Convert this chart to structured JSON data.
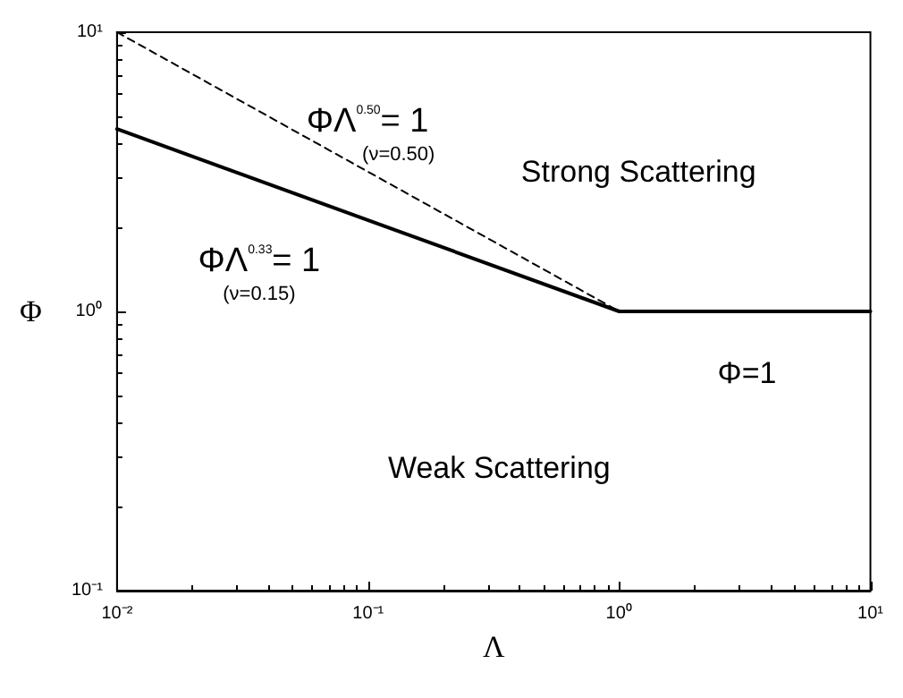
{
  "chart_data": {
    "type": "line",
    "xlabel": "Λ",
    "ylabel": "Φ",
    "log": "xy",
    "grid": false,
    "marker": "none",
    "xlim": [
      0.01,
      10
    ],
    "ylim": [
      0.1,
      10
    ],
    "xticks": [
      {
        "value": 0.01,
        "label": "10⁻²"
      },
      {
        "value": 0.1,
        "label": "10⁻¹"
      },
      {
        "value": 1,
        "label": "10⁰"
      },
      {
        "value": 10,
        "label": "10¹"
      }
    ],
    "yticks": [
      {
        "value": 0.1,
        "label": "10⁻¹"
      },
      {
        "value": 1,
        "label": "10⁰"
      },
      {
        "value": 10,
        "label": "10¹"
      }
    ],
    "series": [
      {
        "color": "#000000",
        "line_style": "solid",
        "x": [
          0.01,
          1,
          10
        ],
        "values": [
          4.5,
          1,
          1
        ]
      },
      {
        "color": "#000000",
        "line_style": "dashed",
        "x": [
          0.01,
          1
        ],
        "values": [
          10,
          1
        ]
      }
    ],
    "annotations": [
      "ΦΛ$^{0.50}$= 1",
      "(ν=0.50)",
      "Strong Scattering",
      "ΦΛ$^{0.33}$= 1",
      "(ν=0.15)",
      "Φ=1",
      "Weak Scattering"
    ]
  }
}
